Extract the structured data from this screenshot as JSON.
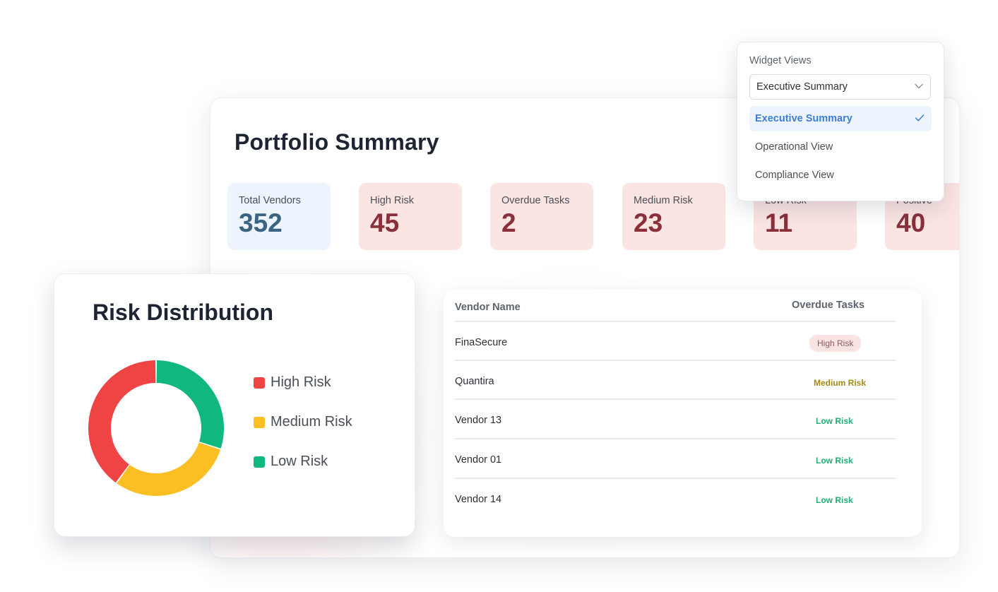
{
  "portfolio": {
    "title": "Portfolio Summary",
    "metrics": [
      {
        "label": "Total Vendors",
        "value": "352",
        "tone": "blue"
      },
      {
        "label": "High Risk",
        "value": "45",
        "tone": "red"
      },
      {
        "label": "Overdue Tasks",
        "value": "2",
        "tone": "red"
      },
      {
        "label": "Medium Risk",
        "value": "23",
        "tone": "red"
      },
      {
        "label": "Low Risk",
        "value": "11",
        "tone": "red"
      },
      {
        "label": "Positive",
        "value": "40",
        "tone": "red"
      }
    ]
  },
  "vendor_table": {
    "headers": {
      "name": "Vendor Name",
      "tasks": "Overdue Tasks"
    },
    "rows": [
      {
        "name": "FinaSecure",
        "risk": "High Risk",
        "level": "high"
      },
      {
        "name": "Quantira",
        "risk": "Medium Risk",
        "level": "medium"
      },
      {
        "name": "Vendor 13",
        "risk": "Low Risk",
        "level": "low"
      },
      {
        "name": "Vendor 01",
        "risk": "Low Risk",
        "level": "low"
      },
      {
        "name": "Vendor 14",
        "risk": "Low Risk",
        "level": "low"
      }
    ]
  },
  "risk_distribution": {
    "title": "Risk Distribution",
    "legend": [
      {
        "label": "High Risk",
        "color": "#ef4444"
      },
      {
        "label": "Medium Risk",
        "color": "#fbbf24"
      },
      {
        "label": "Low Risk",
        "color": "#10b77f"
      }
    ]
  },
  "chart_data": {
    "type": "pie",
    "title": "Risk Distribution",
    "categories": [
      "Low Risk",
      "Medium Risk",
      "High Risk"
    ],
    "values": [
      30,
      30,
      40
    ],
    "colors": [
      "#10b77f",
      "#fbbf24",
      "#ef4444"
    ],
    "donut": true
  },
  "widget_views": {
    "label": "Widget Views",
    "selected": "Executive Summary",
    "options": [
      "Executive Summary",
      "Operational View",
      "Compliance View"
    ],
    "icons": {
      "chevron": "chevron-down-icon",
      "check": "checkmark-icon"
    },
    "accent": "#3b7dd8"
  }
}
